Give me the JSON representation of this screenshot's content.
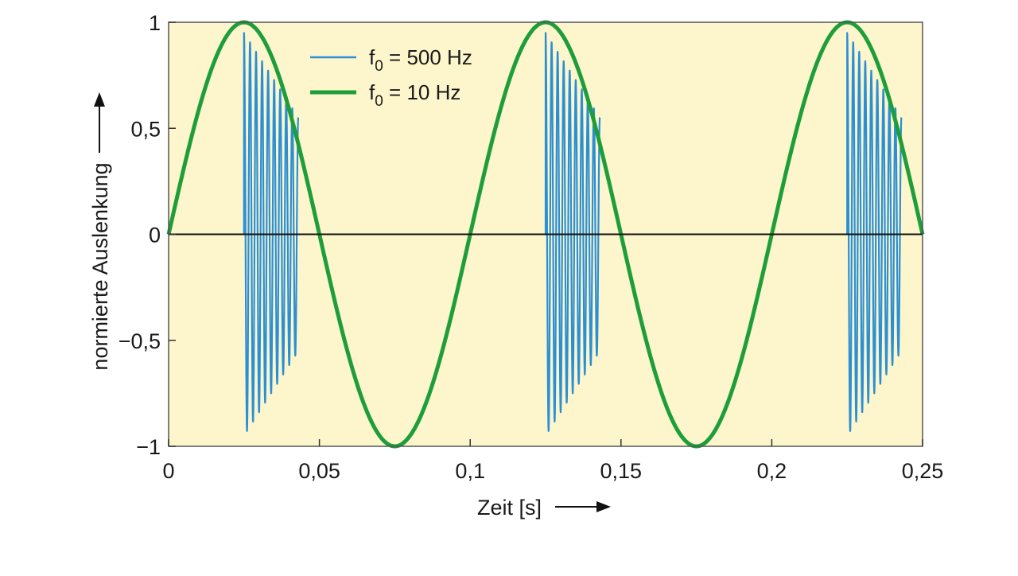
{
  "chart_data": {
    "type": "line",
    "title": "",
    "xlabel": "Zeit [s]",
    "ylabel": "normierte Auslenkung",
    "xlim": [
      0,
      0.25
    ],
    "ylim": [
      -1,
      1
    ],
    "x_ticks": [
      0,
      0.05,
      0.1,
      0.15,
      0.2,
      0.25
    ],
    "x_tick_labels": [
      "0",
      "0,05",
      "0,1",
      "0,15",
      "0,2",
      "0,25"
    ],
    "y_ticks": [
      -1,
      -0.5,
      0,
      0.5,
      1
    ],
    "y_tick_labels": [
      "−1",
      "−0,5",
      "0",
      "0,5",
      "1"
    ],
    "grid": false,
    "background_color": "#fdf6cc",
    "zero_line": true,
    "legend": {
      "position": "top-center",
      "entries": [
        {
          "series": 0,
          "label_prefix": "f",
          "label_sub": "0",
          "label_suffix": " = 500 Hz"
        },
        {
          "series": 1,
          "label_prefix": "f",
          "label_sub": "0",
          "label_suffix": " = 10 Hz"
        }
      ]
    },
    "series": [
      {
        "color": "#2b8fd6",
        "style": "thin",
        "carrier_frequency_hz": 500,
        "burst_start_times_s": [
          0.025,
          0.125,
          0.225
        ],
        "burst_duration_s": 0.018,
        "burst_envelope_start_amplitude": 0.95,
        "burst_envelope_end_amplitude": 0.55
      },
      {
        "color": "#1e9e3a",
        "style": "thick",
        "frequency_hz": 10,
        "amplitude": 1,
        "function": "sine"
      }
    ]
  }
}
